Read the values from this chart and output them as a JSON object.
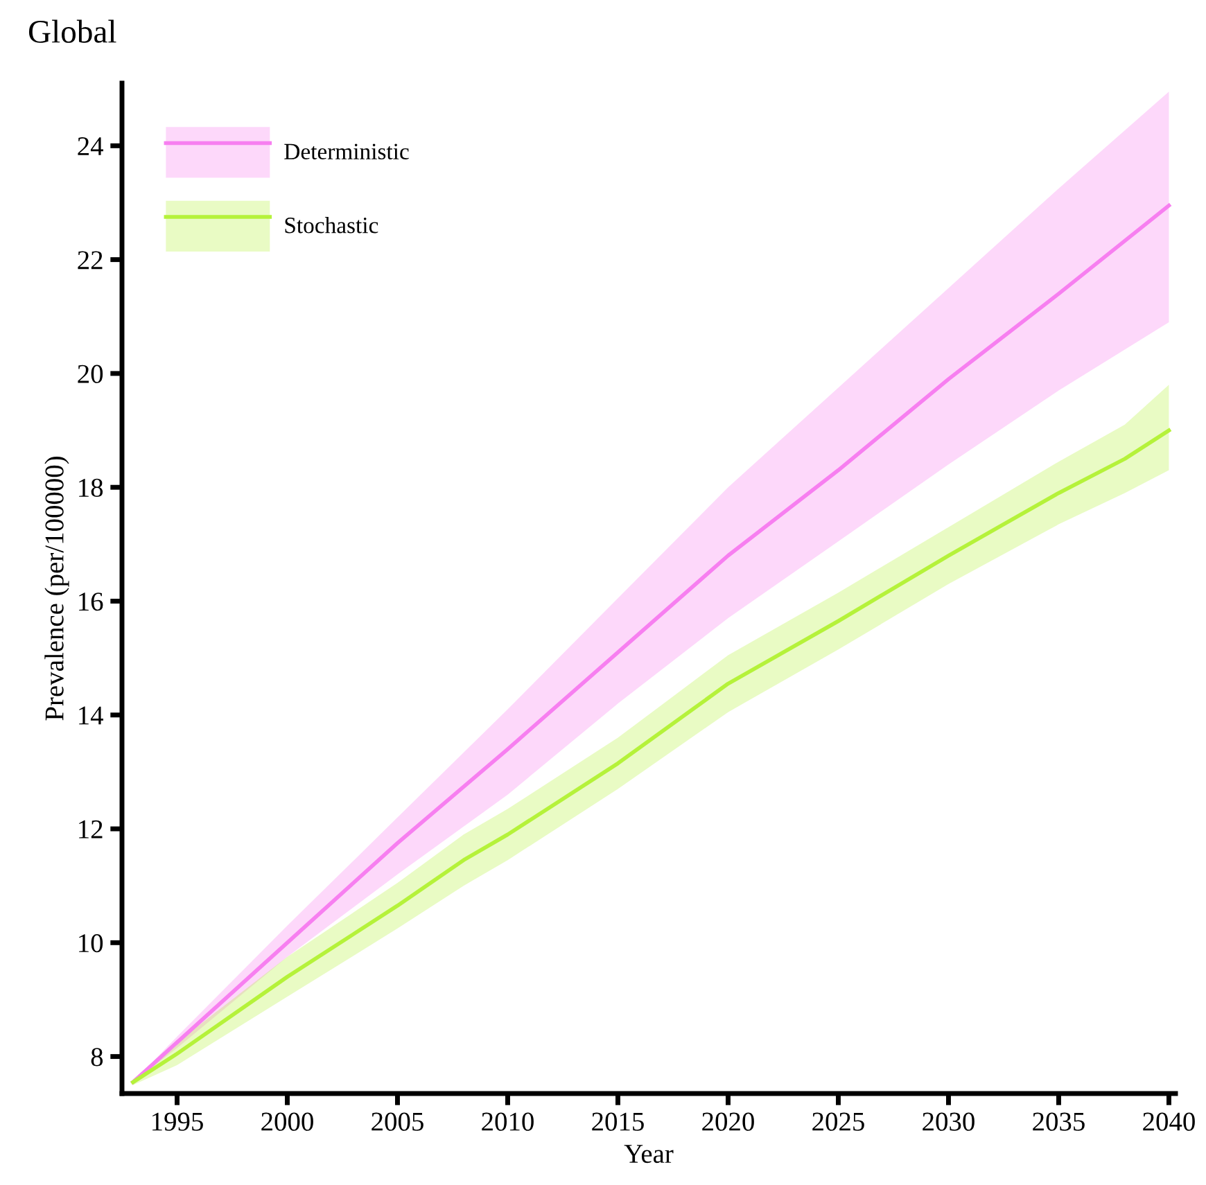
{
  "chart_data": {
    "type": "line",
    "title": "Global",
    "xlabel": "Year",
    "ylabel": "Prevalence (per/100000)",
    "xlim": [
      1992.5,
      2040.3
    ],
    "ylim": [
      7.35,
      25.1
    ],
    "xticks": [
      1995,
      2000,
      2005,
      2010,
      2015,
      2020,
      2025,
      2030,
      2035,
      2040
    ],
    "yticks": [
      8,
      10,
      12,
      14,
      16,
      18,
      20,
      22,
      24
    ],
    "grid": false,
    "legend": "top left",
    "series": [
      {
        "name": "Deterministic",
        "color": "#f77ff0",
        "x": [
          1993,
          1995,
          2000,
          2005,
          2010,
          2015,
          2020,
          2025,
          2030,
          2035,
          2040
        ],
        "values": [
          7.55,
          8.25,
          10.0,
          11.75,
          13.4,
          15.1,
          16.8,
          18.3,
          19.9,
          21.4,
          22.95
        ],
        "lower": [
          7.55,
          8.15,
          9.75,
          11.2,
          12.6,
          14.2,
          15.7,
          17.05,
          18.4,
          19.7,
          20.9
        ],
        "upper": [
          7.55,
          8.35,
          10.3,
          12.2,
          14.1,
          16.05,
          18.0,
          19.75,
          21.5,
          23.25,
          24.95
        ]
      },
      {
        "name": "Stochastic",
        "color": "#b5f23a",
        "x": [
          1993,
          1995,
          2000,
          2005,
          2008,
          2010,
          2015,
          2020,
          2025,
          2030,
          2035,
          2038,
          2040
        ],
        "values": [
          7.55,
          8.05,
          9.4,
          10.65,
          11.45,
          11.9,
          13.15,
          14.55,
          15.65,
          16.8,
          17.9,
          18.5,
          19.0
        ],
        "lower": [
          7.5,
          7.85,
          9.05,
          10.25,
          11.0,
          11.45,
          12.7,
          14.05,
          15.15,
          16.3,
          17.35,
          17.9,
          18.3
        ],
        "upper": [
          7.6,
          8.25,
          9.75,
          11.05,
          11.9,
          12.35,
          13.6,
          15.05,
          16.15,
          17.3,
          18.45,
          19.1,
          19.8
        ]
      }
    ]
  }
}
